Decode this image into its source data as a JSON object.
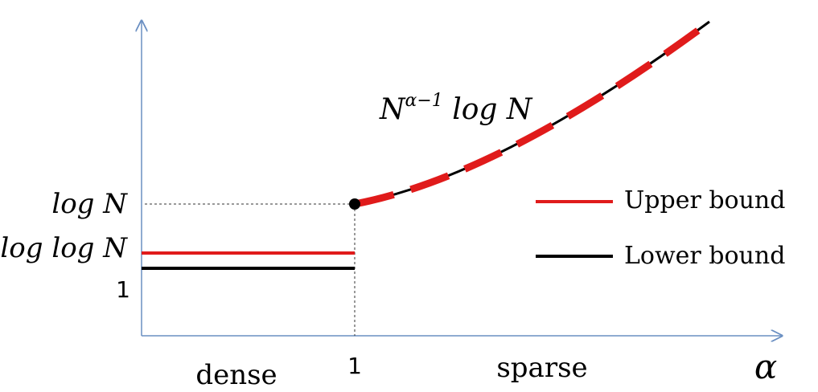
{
  "axes": {
    "x_label": "α",
    "x_ticks": [
      {
        "label": "1"
      }
    ],
    "y_ticks": [
      {
        "label": "log N"
      },
      {
        "label": "log log N"
      },
      {
        "label": "1"
      }
    ]
  },
  "regions": {
    "left": "dense",
    "right": "sparse"
  },
  "annotation": {
    "curve_label_base": "N",
    "curve_label_exponent": "α−1",
    "curve_label_tail": " log N"
  },
  "legend": {
    "position": "right",
    "items": [
      {
        "label": "Upper bound",
        "color": "#e01b1b"
      },
      {
        "label": "Lower bound",
        "color": "#000000"
      }
    ]
  },
  "colors": {
    "axis": "#6a8fc2",
    "upper": "#e01b1b",
    "lower": "#000000",
    "guide": "#333333"
  }
}
